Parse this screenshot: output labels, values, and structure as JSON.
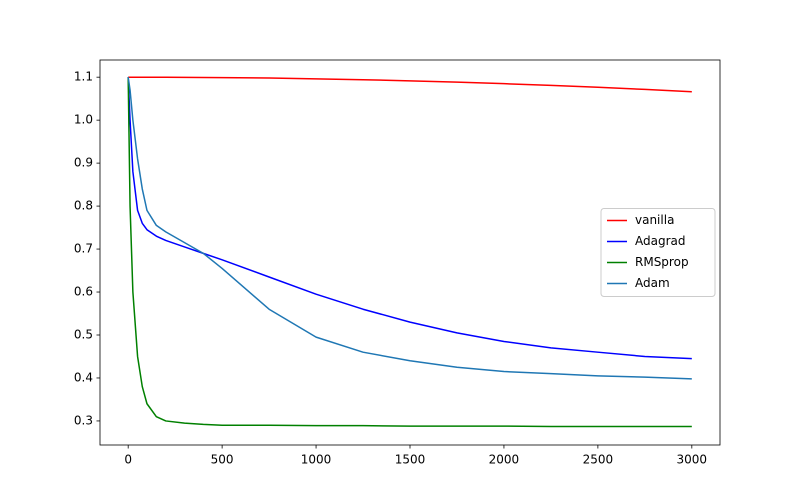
{
  "chart_data": {
    "type": "line",
    "x": [
      0,
      10,
      25,
      50,
      75,
      100,
      150,
      200,
      300,
      400,
      500,
      750,
      1000,
      1250,
      1500,
      1750,
      2000,
      2250,
      2500,
      2750,
      3000
    ],
    "series": [
      {
        "name": "vanilla",
        "color": "#ff0000",
        "values": [
          1.1,
          1.1,
          1.1,
          1.1,
          1.1,
          1.1,
          1.1,
          1.0999,
          1.0997,
          1.0994,
          1.0991,
          1.098,
          1.0962,
          1.0941,
          1.0915,
          1.0884,
          1.0849,
          1.081,
          1.0766,
          1.0715,
          1.066
        ]
      },
      {
        "name": "Adagrad",
        "color": "#0000ff",
        "values": [
          1.1,
          1.0,
          0.88,
          0.79,
          0.76,
          0.745,
          0.73,
          0.72,
          0.705,
          0.69,
          0.675,
          0.635,
          0.595,
          0.56,
          0.53,
          0.505,
          0.485,
          0.47,
          0.46,
          0.45,
          0.445
        ]
      },
      {
        "name": "RMSprop",
        "color": "#008000",
        "values": [
          1.1,
          0.8,
          0.6,
          0.45,
          0.38,
          0.34,
          0.31,
          0.3,
          0.295,
          0.292,
          0.29,
          0.29,
          0.289,
          0.289,
          0.288,
          0.288,
          0.288,
          0.287,
          0.287,
          0.287,
          0.287
        ]
      },
      {
        "name": "Adam",
        "color": "#1f77b4",
        "values": [
          1.1,
          1.07,
          1.0,
          0.91,
          0.84,
          0.79,
          0.755,
          0.74,
          0.715,
          0.69,
          0.655,
          0.56,
          0.495,
          0.46,
          0.44,
          0.425,
          0.415,
          0.41,
          0.405,
          0.402,
          0.398
        ]
      }
    ],
    "xlim": [
      -150,
      3150
    ],
    "xticks": [
      0,
      500,
      1000,
      1500,
      2000,
      2500,
      3000
    ],
    "ylim": [
      0.244,
      1.14
    ],
    "yticks": [
      0.3,
      0.4,
      0.5,
      0.6,
      0.7,
      0.8,
      0.9,
      {
        "value": 1,
        "label": "1.0"
      },
      1.1
    ],
    "grid": false,
    "legend": "center right"
  }
}
